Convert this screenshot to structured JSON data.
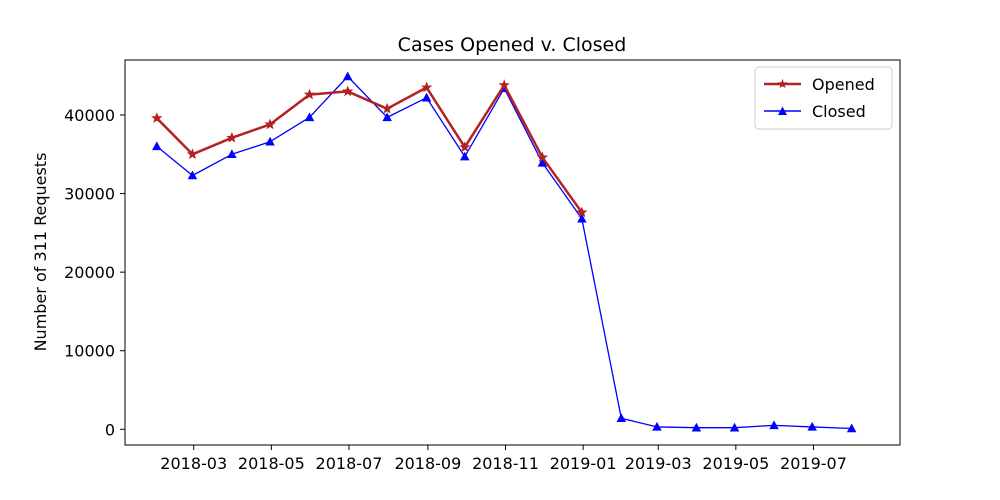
{
  "chart_data": {
    "type": "line",
    "title": "Cases Opened v. Closed",
    "xlabel": "",
    "ylabel": "Number of 311 Requests",
    "xlim": [
      "2018-01-06",
      "2019-09-07"
    ],
    "ylim": [
      -2000,
      47000
    ],
    "x_ticks": [
      "2018-03",
      "2018-05",
      "2018-07",
      "2018-09",
      "2018-11",
      "2019-01",
      "2019-03",
      "2019-05",
      "2019-07"
    ],
    "y_ticks": [
      0,
      10000,
      20000,
      30000,
      40000
    ],
    "grid": false,
    "legend_position": "upper right",
    "series": [
      {
        "name": "Opened",
        "color": "#b22222",
        "marker": "star",
        "x": [
          "2018-01-31",
          "2018-02-28",
          "2018-03-31",
          "2018-04-30",
          "2018-05-31",
          "2018-06-30",
          "2018-07-31",
          "2018-08-31",
          "2018-09-30",
          "2018-10-31",
          "2018-11-30",
          "2018-12-31"
        ],
        "values": [
          39600,
          35000,
          37100,
          38800,
          42600,
          43000,
          40800,
          43500,
          35900,
          43800,
          34600,
          27600
        ]
      },
      {
        "name": "Closed",
        "color": "#0000ff",
        "marker": "triangle",
        "x": [
          "2018-01-31",
          "2018-02-28",
          "2018-03-31",
          "2018-04-30",
          "2018-05-31",
          "2018-06-30",
          "2018-07-31",
          "2018-08-31",
          "2018-09-30",
          "2018-10-31",
          "2018-11-30",
          "2018-12-31",
          "2019-01-31",
          "2019-02-28",
          "2019-03-31",
          "2019-04-30",
          "2019-05-31",
          "2019-06-30",
          "2019-07-31"
        ],
        "values": [
          36000,
          32300,
          35000,
          36600,
          39700,
          44900,
          39700,
          42200,
          34700,
          43400,
          33900,
          26800,
          1400,
          300,
          200,
          200,
          500,
          300,
          100
        ]
      }
    ]
  }
}
